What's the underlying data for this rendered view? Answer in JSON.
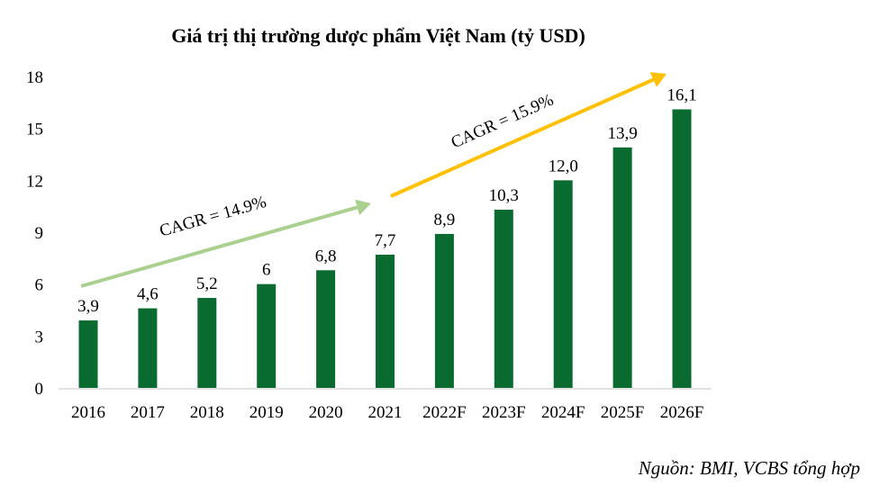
{
  "chart_data": {
    "type": "bar",
    "title": "Giá trị thị trường dược phẩm Việt Nam (tỷ USD)",
    "categories": [
      "2016",
      "2017",
      "2018",
      "2019",
      "2020",
      "2021",
      "2022F",
      "2023F",
      "2024F",
      "2025F",
      "2026F"
    ],
    "values": [
      3.9,
      4.6,
      5.2,
      6,
      6.8,
      7.7,
      8.9,
      10.3,
      12.0,
      13.9,
      16.1
    ],
    "data_labels": [
      "3,9",
      "4,6",
      "5,2",
      "6",
      "6,8",
      "7,7",
      "8,9",
      "10,3",
      "12,0",
      "13,9",
      "16,1"
    ],
    "ylim": [
      0,
      18
    ],
    "yticks": [
      0,
      3,
      6,
      9,
      12,
      15,
      18
    ],
    "grid": false,
    "legend": "none",
    "bar_color": "#0a6b30",
    "annotations": [
      {
        "text": "CAGR = 14.9%",
        "color": "#a9d08e",
        "from": "2016",
        "to": "2021"
      },
      {
        "text": "CAGR = 15.9%",
        "color": "#ffc000",
        "from": "2022F",
        "to": "2026F"
      }
    ],
    "source": "Nguồn: BMI, VCBS tổng hợp"
  }
}
